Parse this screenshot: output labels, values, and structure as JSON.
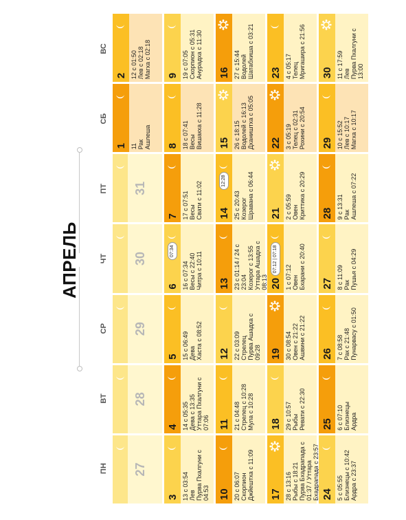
{
  "title": "АПРЕЛЬ",
  "day_headers": [
    "ПН",
    "ВТ",
    "СР",
    "ЧТ",
    "ПТ",
    "СБ",
    "ВС"
  ],
  "weeks": [
    [
      {
        "num": "27",
        "muted": true
      },
      {
        "num": "28",
        "muted": true
      },
      {
        "num": "29",
        "muted": true
      },
      {
        "num": "30",
        "muted": true
      },
      {
        "num": "31",
        "muted": true
      },
      {
        "num": "1",
        "info": "11\nРак\nАшлеша"
      },
      {
        "num": "2",
        "info": "12 с 01:50\nЛев с 02:18\nМагха с 02:18"
      }
    ],
    [
      {
        "num": "3",
        "info": "13 с 03:54\nЛев\nПурва Пхалгуни с 04:53"
      },
      {
        "num": "4",
        "info": "14 с 05:35\nДева с 13:35\nУттара Пхалгуни с 07:06"
      },
      {
        "num": "5",
        "info": "15 с 06:49\nДева\nХаста с 08:52"
      },
      {
        "num": "6",
        "info": "16 с 07:34\nВесы с 22:40\nЧитра с 10:11",
        "badge": "07:34"
      },
      {
        "num": "7",
        "info": "17 с 07:51\nВесы\nСвати с 11:02"
      },
      {
        "num": "8",
        "info": "18 с 07:41\nВесы\nВишакха с 11:28"
      },
      {
        "num": "9",
        "info": "19 с 07:05\nСкорпион с 05:31\nАнурадха с 11:30"
      }
    ],
    [
      {
        "num": "10",
        "info": "20 с 06:07\nСкорпион\nДжйештха с 11:09"
      },
      {
        "num": "11",
        "info": "21 с 04:48\nСтрелец с 10:28\nМула с 10:28"
      },
      {
        "num": "12",
        "info": "22 с 03:09\nСтрелец\nПурва Ашадха с 09:28"
      },
      {
        "num": "13",
        "info": "23 с 01:14 / 24 с 23:04\nКозерог с 13:55\nУттара Ашадха с 08:13"
      },
      {
        "num": "14",
        "info": "25 с 20:43\nКозерог\nШравана с 06:44",
        "badge": "12:28"
      },
      {
        "num": "15",
        "info": "26 с 18:15\nВодолей с 16:13\nДхаништха с 05:05"
      },
      {
        "num": "16",
        "info": "27 с 15:44\nВодолей\nШатабхиша с 03:21"
      }
    ],
    [
      {
        "num": "17",
        "info": "28 с 13:16\nРыбы с 18:21\nПурва Бхадрапада с 01:37 / Уттара\nБхадрапада с 23:57"
      },
      {
        "num": "18",
        "info": "29 с 10:57\nРыбы\nРевати с 22:30"
      },
      {
        "num": "19",
        "info": "30 с 08:54\nОвен с 21:22\nАшвини с 21:22"
      },
      {
        "num": "20",
        "info": "1 с 07:12\nОвен\nБхарани с 20:40",
        "badge": "07:12 | 07:18"
      },
      {
        "num": "21",
        "info": "2 с 05:59\nОвен\nКриттика с 20:29"
      },
      {
        "num": "22",
        "info": "3 с 05:19\nТелец с 02:31\nРохини с 20:54"
      },
      {
        "num": "23",
        "info": "4 с 05:17\nТелец\nМригашира с 21:56"
      }
    ],
    [
      {
        "num": "24",
        "info": "5 с 05:55\nБлизнецы с 10:42\nАрдра с 23:37"
      },
      {
        "num": "25",
        "info": "6 с 07:10\nБлизнецы\nАрдра"
      },
      {
        "num": "26",
        "info": "7 с 08:58\nРак с 21:48\nПунарвасу с 01:50"
      },
      {
        "num": "27",
        "info": "8 с 11:09\nРак\nПушья с 04:29"
      },
      {
        "num": "28",
        "info": "9 с 13:31\nРак\nАшлеша с 07:22"
      },
      {
        "num": "29",
        "info": "10 с 15:52\nЛев с 10:17\nМагха с 10:17"
      },
      {
        "num": "30",
        "info": "11 с 17:59\nЛев\nПурва Пхалгуни с 13:00"
      }
    ]
  ],
  "colors": {
    "muted_bar": "#fde68a",
    "muted_bg": "#fff7cf",
    "saturday_bg": "#fde3b5",
    "bar_yellow": "#fcd34d",
    "bar_orange": "#fbbf24",
    "bar_deep": "#f59e0b",
    "cell_bg": "#fff3c4"
  }
}
